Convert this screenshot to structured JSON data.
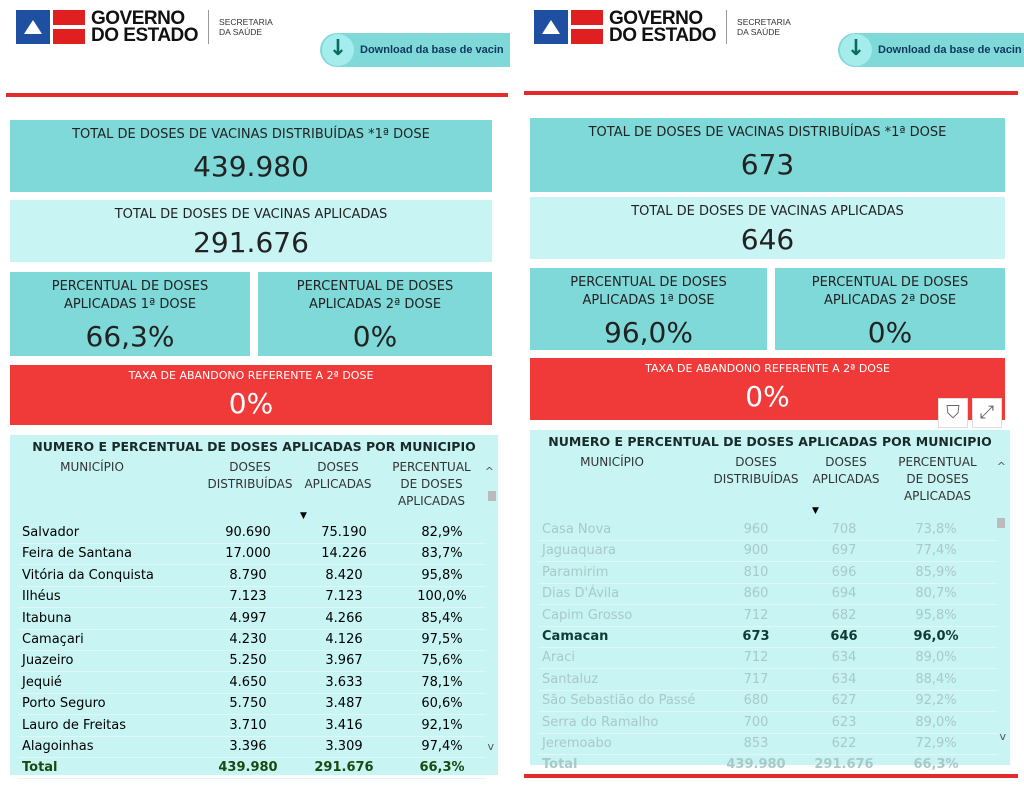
{
  "brand": {
    "line1": "GOVERNO",
    "line2": "DO ESTADO",
    "sec1": "SECRETARIA",
    "sec2": "DA SAÚDE"
  },
  "download_label": "Download da base de vacin",
  "colors": {
    "teal": "#7fd9d9",
    "light_teal": "#c8f4f4",
    "red": "#f03a3a",
    "accent_line": "#e42a2a"
  },
  "labels": {
    "distributed": "TOTAL DE DOSES DE VACINAS DISTRIBUÍDAS *1ª DOSE",
    "applied": "TOTAL DE DOSES DE VACINAS APLICADAS",
    "pct1": "PERCENTUAL DE DOSES APLICADAS 1ª DOSE",
    "pct2": "PERCENTUAL DE DOSES APLICADAS 2ª DOSE",
    "abandon": "TAXA DE ABANDONO REFERENTE A 2ª DOSE",
    "table_title": "NUMERO E PERCENTUAL DE DOSES APLICADAS POR MUNICIPIO",
    "col_mun": "MUNICÍPIO",
    "col_dist": "DOSES DISTRIBUÍDAS",
    "col_apl": "DOSES APLICADAS",
    "col_pct": "PERCENTUAL DE DOSES APLICADAS"
  },
  "left": {
    "distributed": "439.980",
    "applied": "291.676",
    "pct1": "66,3%",
    "pct2": "0%",
    "abandon": "0%",
    "rows": [
      [
        "Salvador",
        "90.690",
        "75.190",
        "82,9%"
      ],
      [
        "Feira de Santana",
        "17.000",
        "14.226",
        "83,7%"
      ],
      [
        "Vitória da Conquista",
        "8.790",
        "8.420",
        "95,8%"
      ],
      [
        "Ilhéus",
        "7.123",
        "7.123",
        "100,0%"
      ],
      [
        "Itabuna",
        "4.997",
        "4.266",
        "85,4%"
      ],
      [
        "Camaçari",
        "4.230",
        "4.126",
        "97,5%"
      ],
      [
        "Juazeiro",
        "5.250",
        "3.967",
        "75,6%"
      ],
      [
        "Jequié",
        "4.650",
        "3.633",
        "78,1%"
      ],
      [
        "Porto Seguro",
        "5.750",
        "3.487",
        "60,6%"
      ],
      [
        "Lauro de Freitas",
        "3.710",
        "3.416",
        "92,1%"
      ],
      [
        "Alagoinhas",
        "3.396",
        "3.309",
        "97,4%"
      ]
    ],
    "total": [
      "Total",
      "439.980",
      "291.676",
      "66,3%"
    ]
  },
  "right": {
    "distributed": "673",
    "applied": "646",
    "pct1": "96,0%",
    "pct2": "0%",
    "abandon": "0%",
    "highlighted": "Camacan",
    "rows": [
      [
        "Casa Nova",
        "960",
        "708",
        "73,8%"
      ],
      [
        "Jaguaquara",
        "900",
        "697",
        "77,4%"
      ],
      [
        "Paramirim",
        "810",
        "696",
        "85,9%"
      ],
      [
        "Dias D'Ávila",
        "860",
        "694",
        "80,7%"
      ],
      [
        "Capim Grosso",
        "712",
        "682",
        "95,8%"
      ],
      [
        "Camacan",
        "673",
        "646",
        "96,0%"
      ],
      [
        "Araci",
        "712",
        "634",
        "89,0%"
      ],
      [
        "Santaluz",
        "717",
        "634",
        "88,4%"
      ],
      [
        "São Sebastião do Passé",
        "680",
        "627",
        "92,2%"
      ],
      [
        "Serra do Ramalho",
        "700",
        "623",
        "89,0%"
      ],
      [
        "Jeremoabo",
        "853",
        "622",
        "72,9%"
      ]
    ],
    "total": [
      "Total",
      "439.980",
      "291.676",
      "66,3%"
    ]
  },
  "icons": {
    "download": "arrow-down-icon",
    "filter": "filter-icon",
    "focus": "expand-icon",
    "sort": "sort-desc-icon"
  }
}
